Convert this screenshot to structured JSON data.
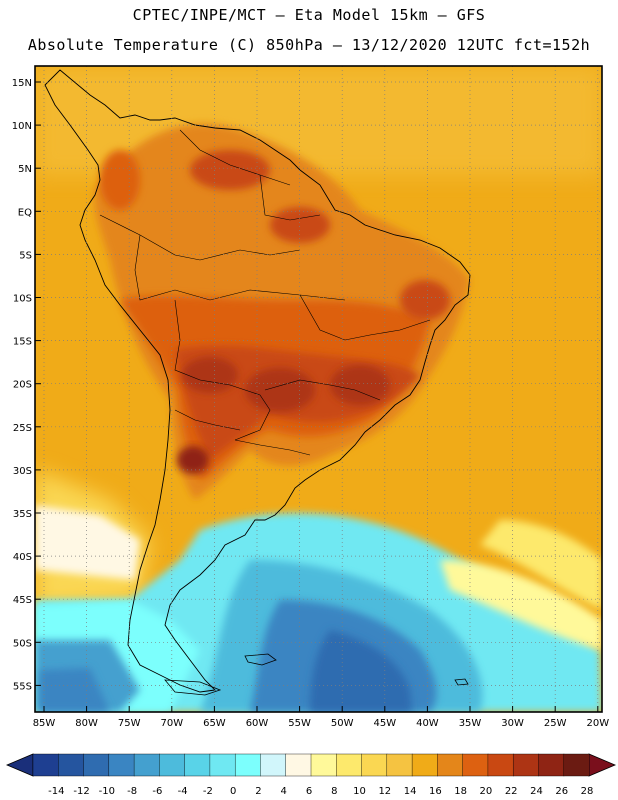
{
  "header": {
    "line1": "CPTEC/INPE/MCT –  Eta Model 15km – GFS",
    "line2": "Absolute Temperature (C) 850hPa – 13/12/2020 12UTC fct=152h"
  },
  "map": {
    "lat_labels": [
      "15N",
      "10N",
      "5N",
      "EQ",
      "5S",
      "10S",
      "15S",
      "20S",
      "25S",
      "30S",
      "35S",
      "40S",
      "45S",
      "50S",
      "55S"
    ],
    "lon_labels": [
      "85W",
      "80W",
      "75W",
      "70W",
      "65W",
      "60W",
      "55W",
      "50W",
      "45W",
      "40W",
      "35W",
      "30W",
      "25W",
      "20W"
    ]
  },
  "colorbar": {
    "colors": [
      "#1e3f91",
      "#25559f",
      "#2f6cb0",
      "#3a85c2",
      "#44a0cf",
      "#4dbbdc",
      "#59d3e8",
      "#6fe8f2",
      "#7cfffd",
      "#d1f6fb",
      "#fff8e4",
      "#fff99a",
      "#fde96c",
      "#fad752",
      "#f5c341",
      "#f0ab18",
      "#e4861a",
      "#dd6111",
      "#c94812",
      "#ad3414",
      "#8f2414",
      "#6b1b12"
    ],
    "tick_labels": [
      "-14",
      "-12",
      "-10",
      "-8",
      "-6",
      "-4",
      "-2",
      "0",
      "2",
      "4",
      "6",
      "8",
      "10",
      "12",
      "14",
      "16",
      "18",
      "20",
      "22",
      "24",
      "26",
      "28"
    ],
    "low_arrow_color": "#1a2f7a",
    "high_arrow_color": "#7a0f1c"
  }
}
